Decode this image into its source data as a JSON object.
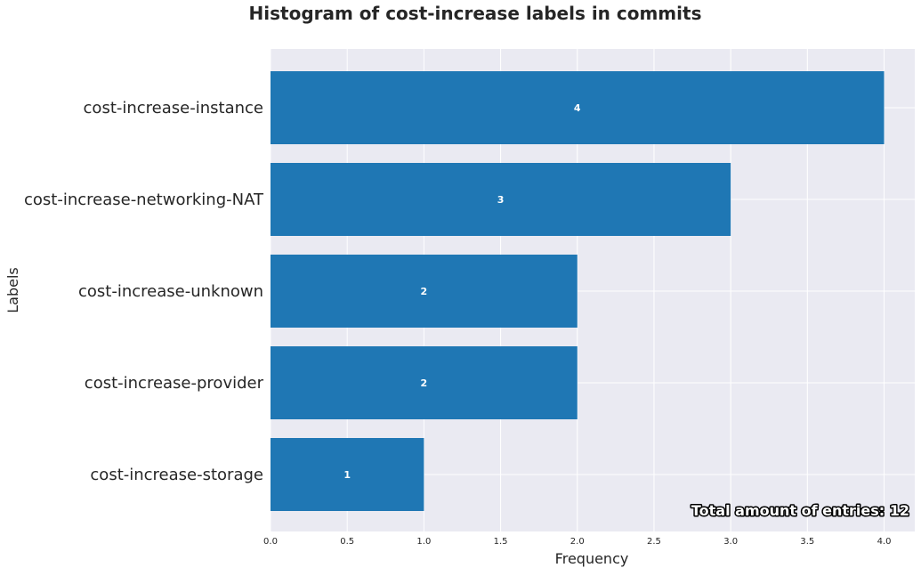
{
  "chart_data": {
    "type": "bar",
    "orientation": "horizontal",
    "title": "Histogram of cost-increase labels in commits",
    "xlabel": "Frequency",
    "ylabel": "Labels",
    "categories": [
      "cost-increase-instance",
      "cost-increase-networking-NAT",
      "cost-increase-unknown",
      "cost-increase-provider",
      "cost-increase-storage"
    ],
    "values": [
      4,
      3,
      2,
      2,
      1
    ],
    "xlim": [
      0,
      4.2
    ],
    "xticks": [
      "0.0",
      "0.5",
      "1.0",
      "1.5",
      "2.0",
      "2.5",
      "3.0",
      "3.5",
      "4.0"
    ],
    "grid": true,
    "annotation": "Total amount of entries: 12",
    "colors": {
      "bar": "#1f77b4",
      "background": "#eaeaf2",
      "grid": "#ffffff"
    }
  }
}
